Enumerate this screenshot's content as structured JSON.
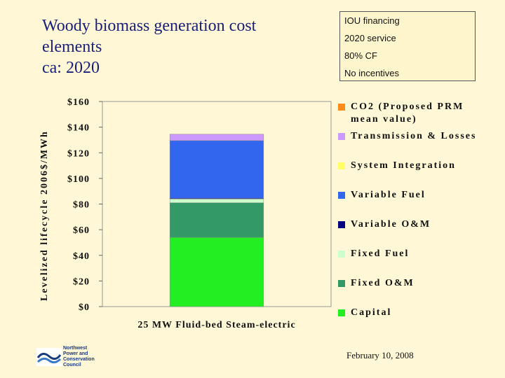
{
  "slide": {
    "title_lines": [
      "Woody biomass generation cost",
      "elements",
      "ca: 2020"
    ],
    "assumptions": [
      "IOU financing",
      "2020 service",
      "80% CF",
      "No incentives"
    ],
    "date": "February 10, 2008",
    "logo_lines": [
      "Northwest",
      "Power and",
      "Conservation",
      "Council"
    ]
  },
  "chart_data": {
    "type": "bar",
    "stacked": true,
    "ylabel": "Levelized lifecycle 2006$/MWh",
    "ylim": [
      0,
      160
    ],
    "ytick_labels": [
      "$0",
      "$20",
      "$40",
      "$60",
      "$80",
      "$100",
      "$120",
      "$140",
      "$160"
    ],
    "categories": [
      "25 MW Fluid-bed Steam-electric"
    ],
    "series": [
      {
        "name": "Capital",
        "values": [
          54
        ],
        "color": "#22ee22"
      },
      {
        "name": "Fixed O&M",
        "values": [
          27
        ],
        "color": "#339966"
      },
      {
        "name": "Fixed Fuel",
        "values": [
          3
        ],
        "color": "#ccffcc"
      },
      {
        "name": "Variable O&M",
        "values": [
          0.5
        ],
        "color": "#000080"
      },
      {
        "name": "Variable Fuel",
        "values": [
          45
        ],
        "color": "#3366ee"
      },
      {
        "name": "System Integration",
        "values": [
          0
        ],
        "color": "#ffff66"
      },
      {
        "name": "Transmission & Losses",
        "values": [
          5
        ],
        "color": "#cc99ff"
      },
      {
        "name": "CO2 (Proposed PRM mean value)",
        "values": [
          0
        ],
        "color": "#ff8c1a"
      }
    ],
    "legend_order": [
      7,
      6,
      5,
      4,
      3,
      2,
      1,
      0
    ],
    "legend_position": "right",
    "grid": false
  }
}
